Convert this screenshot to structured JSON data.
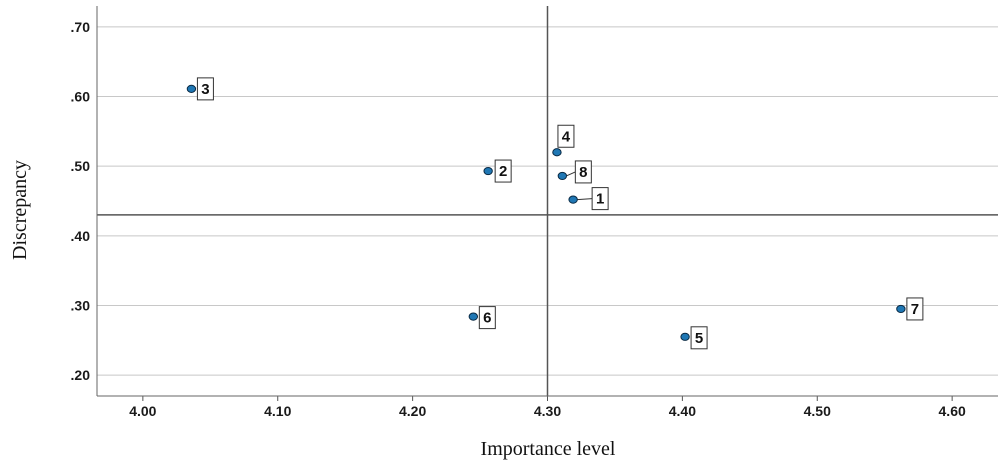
{
  "chart_data": {
    "type": "scatter",
    "title": "",
    "xlabel": "Importance level",
    "ylabel": "Discrepancy",
    "xlim": [
      3.966,
      4.634
    ],
    "ylim": [
      0.17,
      0.73
    ],
    "x_ticks": [
      "4.00",
      "4.10",
      "4.20",
      "4.30",
      "4.40",
      "4.50",
      "4.60"
    ],
    "x_tick_values": [
      4.0,
      4.1,
      4.2,
      4.3,
      4.4,
      4.5,
      4.6
    ],
    "y_ticks": [
      ".20",
      ".30",
      ".40",
      ".50",
      ".60",
      ".70"
    ],
    "y_tick_values": [
      0.2,
      0.3,
      0.4,
      0.5,
      0.6,
      0.7
    ],
    "grid": "horizontal",
    "reference_lines": {
      "x": 4.3,
      "y": 0.43
    },
    "marker_color": "#1f77b4",
    "points": [
      {
        "label": "1",
        "x": 4.319,
        "y": 0.452
      },
      {
        "label": "2",
        "x": 4.256,
        "y": 0.493
      },
      {
        "label": "3",
        "x": 4.036,
        "y": 0.611
      },
      {
        "label": "4",
        "x": 4.307,
        "y": 0.52
      },
      {
        "label": "5",
        "x": 4.402,
        "y": 0.255
      },
      {
        "label": "6",
        "x": 4.245,
        "y": 0.284
      },
      {
        "label": "7",
        "x": 4.562,
        "y": 0.295
      },
      {
        "label": "8",
        "x": 4.311,
        "y": 0.486
      }
    ]
  }
}
